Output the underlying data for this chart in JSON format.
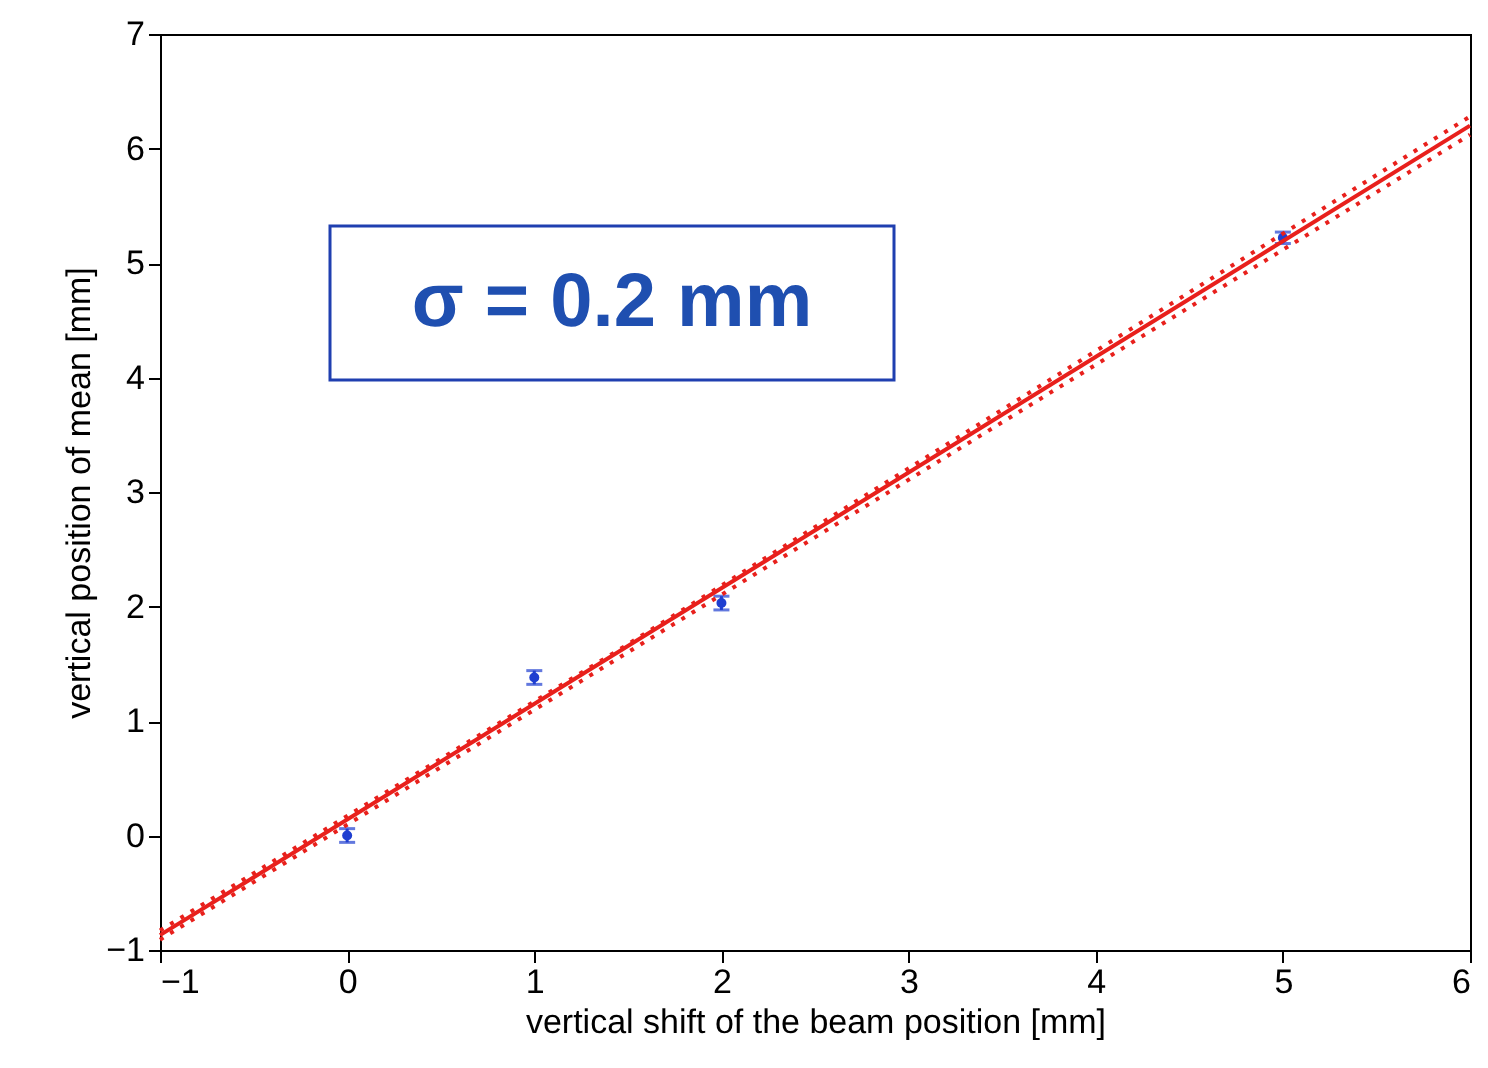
{
  "chart_data": {
    "type": "scatter",
    "xlabel": "vertical shift of the beam position [mm]",
    "ylabel": "vertical position of mean [mm]",
    "xlim": [
      -1,
      6
    ],
    "ylim": [
      -1,
      7
    ],
    "xticks": [
      -1,
      0,
      1,
      2,
      3,
      4,
      5,
      6
    ],
    "yticks": [
      -1,
      0,
      1,
      2,
      3,
      4,
      5,
      6,
      7
    ],
    "grid": false,
    "annotations": [
      "σ = 0.2 mm"
    ],
    "series": [
      {
        "color": "#1f3fd0",
        "x": [
          0,
          1,
          2,
          5
        ],
        "values": [
          0.0,
          1.38,
          2.03,
          5.22
        ],
        "errors": [
          0.06,
          0.06,
          0.06,
          0.05
        ],
        "marker": "circle"
      },
      {
        "type": "line",
        "color": "#e8201c",
        "x": [
          -1,
          6
        ],
        "values": [
          -0.87,
          6.2
        ],
        "line_style": "solid"
      },
      {
        "type": "line",
        "color": "#e8201c",
        "x": [
          -1,
          1.5,
          6
        ],
        "values": [
          -0.83,
          1.67,
          6.28
        ],
        "line_style": "dotted"
      },
      {
        "type": "line",
        "color": "#e8201c",
        "x": [
          -1,
          1.5,
          6
        ],
        "values": [
          -0.91,
          1.6,
          6.12
        ],
        "line_style": "dotted"
      }
    ]
  }
}
